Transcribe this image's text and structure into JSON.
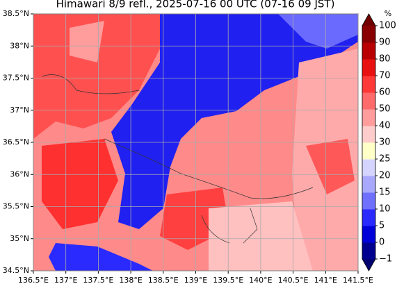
{
  "chart_data": {
    "type": "map",
    "title": "Himawari 8/9 refl., 2025-07-16 00 UTC (07-16 09 JST)",
    "xlim": [
      136.5,
      141.5
    ],
    "ylim": [
      34.5,
      38.5
    ],
    "xticks": [
      {
        "value": 136.5,
        "label": "136.5°E"
      },
      {
        "value": 137,
        "label": "137°E"
      },
      {
        "value": 137.5,
        "label": "137.5°E"
      },
      {
        "value": 138,
        "label": "138°E"
      },
      {
        "value": 138.5,
        "label": "138.5°E"
      },
      {
        "value": 139,
        "label": "139°E"
      },
      {
        "value": 139.5,
        "label": "139.5°E"
      },
      {
        "value": 140,
        "label": "140°E"
      },
      {
        "value": 140.5,
        "label": "140.5°E"
      },
      {
        "value": 141,
        "label": "141°E"
      },
      {
        "value": 141.5,
        "label": "141.5°E"
      }
    ],
    "yticks": [
      {
        "value": 34.5,
        "label": "34.5°N"
      },
      {
        "value": 35,
        "label": "35°N"
      },
      {
        "value": 35.5,
        "label": "35.5°N"
      },
      {
        "value": 36,
        "label": "36°N"
      },
      {
        "value": 36.5,
        "label": "36.5°N"
      },
      {
        "value": 37,
        "label": "37°N"
      },
      {
        "value": 37.5,
        "label": "37.5°N"
      },
      {
        "value": 38,
        "label": "38°N"
      },
      {
        "value": 38.5,
        "label": "38.5°N"
      }
    ],
    "grid": true,
    "colorbar": {
      "label": "%",
      "levels": [
        {
          "value": -1,
          "label": "−1"
        },
        0,
        5,
        10,
        15,
        20,
        25,
        30,
        40,
        50,
        60,
        70,
        80,
        90,
        100
      ],
      "colors": [
        "#000090",
        "#0000d8",
        "#2a2aff",
        "#7070ff",
        "#a8a8ff",
        "#d4d4ff",
        "#ffffc8",
        "#ffcccc",
        "#ff9c9c",
        "#ff6a6a",
        "#ff3838",
        "#e81010",
        "#b80000",
        "#880000"
      ],
      "under_color": "#000070",
      "over_color": "#700000"
    }
  }
}
